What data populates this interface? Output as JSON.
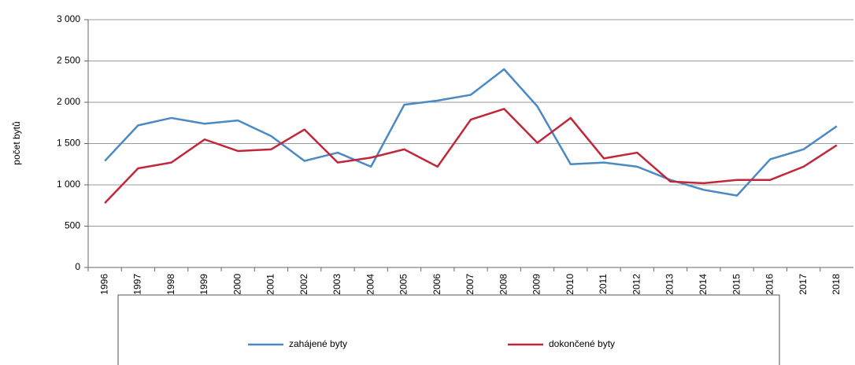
{
  "chart_data": {
    "type": "line",
    "y_label": "počet bytů",
    "categories": [
      "1996",
      "1997",
      "1998",
      "1999",
      "2000",
      "2001",
      "2002",
      "2003",
      "2004",
      "2005",
      "2006",
      "2007",
      "2008",
      "2009",
      "2010",
      "2011",
      "2012",
      "2013",
      "2014",
      "2015",
      "2016",
      "2017",
      "2018"
    ],
    "series": [
      {
        "name": "zahájené byty",
        "color": "#4a89c4",
        "values": [
          1290,
          1720,
          1810,
          1740,
          1780,
          1590,
          1290,
          1390,
          1220,
          1970,
          2020,
          2090,
          2400,
          1950,
          1250,
          1270,
          1220,
          1060,
          940,
          870,
          1310,
          1430,
          1710
        ]
      },
      {
        "name": "dokončené byty",
        "color": "#c0273a",
        "values": [
          780,
          1200,
          1270,
          1550,
          1410,
          1430,
          1670,
          1270,
          1330,
          1430,
          1220,
          1790,
          1920,
          1510,
          1810,
          1320,
          1390,
          1040,
          1020,
          1060,
          1060,
          1220,
          1480
        ]
      }
    ],
    "ylim": [
      0,
      3000
    ],
    "yticks": [
      0,
      500,
      {
        "value": 1000,
        "label": "1 000"
      },
      {
        "value": 1500,
        "label": "1 500"
      },
      {
        "value": 2000,
        "label": "2 000"
      },
      {
        "value": 2500,
        "label": "2 500"
      },
      {
        "value": 3000,
        "label": "3 000"
      }
    ],
    "grid": true
  }
}
